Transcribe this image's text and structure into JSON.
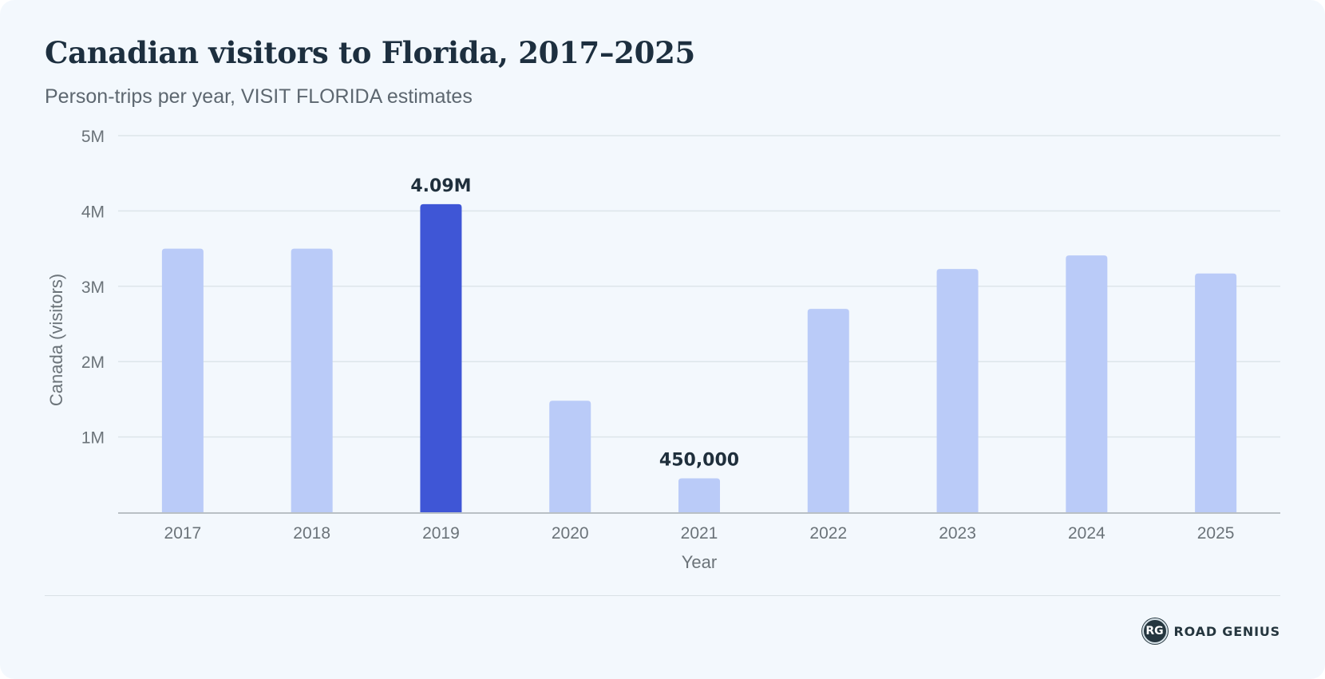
{
  "header": {
    "title": "Canadian visitors to Florida, 2017–2025",
    "subtitle": "Person-trips per year, VISIT FLORIDA estimates"
  },
  "chart_data": {
    "type": "bar",
    "categories": [
      "2017",
      "2018",
      "2019",
      "2020",
      "2021",
      "2022",
      "2023",
      "2024",
      "2025"
    ],
    "values": [
      3500000,
      3500000,
      4090000,
      1480000,
      450000,
      2700000,
      3230000,
      3410000,
      3170000
    ],
    "highlight_index": 2,
    "data_labels": [
      {
        "index": 2,
        "text": "4.09M"
      },
      {
        "index": 4,
        "text": "450,000"
      }
    ],
    "xlabel": "Year",
    "ylabel": "Canada (visitors)",
    "ylim": [
      0,
      5000000
    ],
    "yticks": [
      {
        "value": 1000000,
        "label": "1M"
      },
      {
        "value": 2000000,
        "label": "2M"
      },
      {
        "value": 3000000,
        "label": "3M"
      },
      {
        "value": 4000000,
        "label": "4M"
      },
      {
        "value": 5000000,
        "label": "5M"
      }
    ],
    "grid": true,
    "colors": {
      "bar": "#bacbf8",
      "highlight": "#3f56d6",
      "grid": "#dde5ea",
      "axis": "#b9c0c5"
    }
  },
  "footer": {
    "brand_logo_text": "RG",
    "brand_name": "ROAD GENIUS",
    "brand_icon": "road-genius-logo-icon"
  }
}
